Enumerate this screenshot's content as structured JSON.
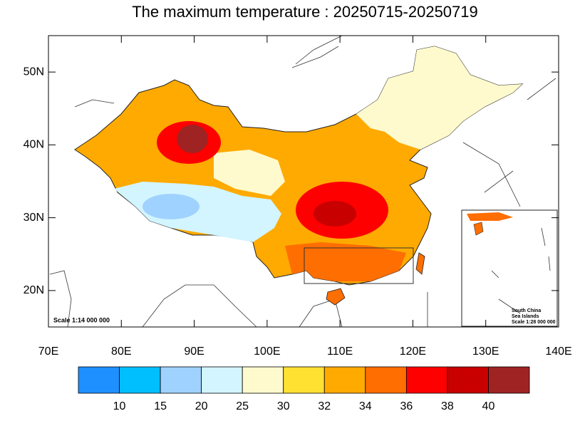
{
  "title": "The maximum temperature : 20250715-20250719",
  "map": {
    "xlim": [
      70,
      140
    ],
    "ylim": [
      15,
      55
    ],
    "xticks": [
      {
        "value": 70,
        "label": "70E"
      },
      {
        "value": 80,
        "label": "80E"
      },
      {
        "value": 90,
        "label": "90E"
      },
      {
        "value": 100,
        "label": "100E"
      },
      {
        "value": 110,
        "label": "110E"
      },
      {
        "value": 120,
        "label": "120E"
      },
      {
        "value": 130,
        "label": "130E"
      },
      {
        "value": 140,
        "label": "140E"
      }
    ],
    "yticks": [
      {
        "value": 20,
        "label": "20N"
      },
      {
        "value": 30,
        "label": "30N"
      },
      {
        "value": 40,
        "label": "40N"
      },
      {
        "value": 50,
        "label": "50N"
      }
    ],
    "scale": "Scale 1:14 000 000",
    "inset": {
      "title_1": "South China",
      "title_2": "Sea Islands",
      "scale": "Scale 1:28 000 000"
    }
  },
  "colorbar": {
    "levels": [
      10,
      15,
      20,
      25,
      30,
      32,
      34,
      36,
      38,
      40
    ],
    "colors": [
      "#1E90FF",
      "#00BFFF",
      "#A0D2FF",
      "#D2F5FF",
      "#FFFACD",
      "#FFE132",
      "#FFAA00",
      "#FF6E00",
      "#FF0000",
      "#C80000",
      "#A02323"
    ]
  }
}
